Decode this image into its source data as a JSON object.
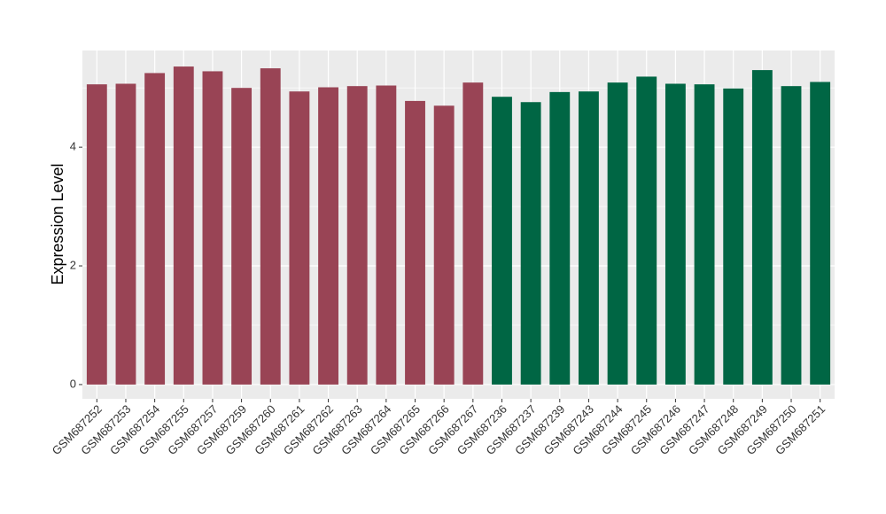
{
  "chart_data": {
    "type": "bar",
    "y_label": "Expression Level",
    "categories": [
      "GSM687252",
      "GSM687253",
      "GSM687254",
      "GSM687255",
      "GSM687257",
      "GSM687259",
      "GSM687260",
      "GSM687261",
      "GSM687262",
      "GSM687263",
      "GSM687264",
      "GSM687265",
      "GSM687266",
      "GSM687267",
      "GSM687236",
      "GSM687237",
      "GSM687239",
      "GSM687243",
      "GSM687244",
      "GSM687245",
      "GSM687246",
      "GSM687247",
      "GSM687248",
      "GSM687249",
      "GSM687250",
      "GSM687251"
    ],
    "values": [
      5.06,
      5.07,
      5.25,
      5.36,
      5.28,
      5.0,
      5.33,
      4.94,
      5.01,
      5.03,
      5.04,
      4.78,
      4.7,
      5.09,
      4.85,
      4.76,
      4.93,
      4.94,
      5.09,
      5.19,
      5.07,
      5.06,
      4.99,
      5.3,
      5.03,
      5.1
    ],
    "colors": [
      "#994455",
      "#994455",
      "#994455",
      "#994455",
      "#994455",
      "#994455",
      "#994455",
      "#994455",
      "#994455",
      "#994455",
      "#994455",
      "#994455",
      "#994455",
      "#994455",
      "#006644",
      "#006644",
      "#006644",
      "#006644",
      "#006644",
      "#006644",
      "#006644",
      "#006644",
      "#006644",
      "#006644",
      "#006644",
      "#006644"
    ],
    "ylim": [
      -0.24,
      5.63
    ],
    "yticks": [
      0,
      2,
      4
    ],
    "yminorticks": [
      1,
      3,
      5
    ],
    "grid": true,
    "panel_color": "#ebebeb"
  }
}
